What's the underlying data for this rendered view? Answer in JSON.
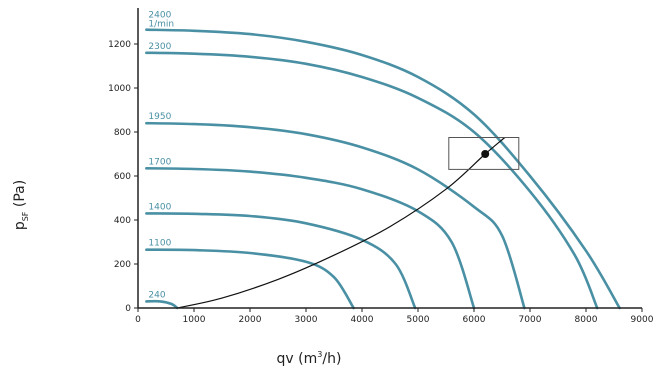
{
  "chart_data": {
    "type": "line",
    "xlabel": {
      "main": "qv (m",
      "sup": "3",
      "tail": "/h)"
    },
    "ylabel": {
      "main": "p",
      "sub": "SF",
      "tail": " (Pa)"
    },
    "xlim": [
      0,
      9000
    ],
    "ylim": [
      0,
      1400
    ],
    "x_ticks": [
      "0",
      "1000",
      "2000",
      "3000",
      "4000",
      "5000",
      "6000",
      "7000",
      "8000",
      "9000"
    ],
    "y_ticks": [
      "0",
      "200",
      "400",
      "600",
      "800",
      "1000",
      "1200"
    ],
    "grid": false,
    "colors": {
      "curve": "#4a90a4",
      "system": "#111111",
      "axis": "#222222"
    },
    "series": [
      {
        "name": "2400",
        "unit": "1/min",
        "values": [
          [
            150,
            1265
          ],
          [
            1000,
            1260
          ],
          [
            2000,
            1245
          ],
          [
            3000,
            1210
          ],
          [
            4000,
            1150
          ],
          [
            5000,
            1050
          ],
          [
            6000,
            880
          ],
          [
            7000,
            600
          ],
          [
            8000,
            260
          ],
          [
            8600,
            0
          ]
        ]
      },
      {
        "name": "2300",
        "values": [
          [
            150,
            1160
          ],
          [
            1000,
            1156
          ],
          [
            2000,
            1142
          ],
          [
            3000,
            1110
          ],
          [
            4000,
            1050
          ],
          [
            5000,
            955
          ],
          [
            6000,
            800
          ],
          [
            7000,
            530
          ],
          [
            7800,
            240
          ],
          [
            8200,
            0
          ]
        ]
      },
      {
        "name": "1950",
        "values": [
          [
            150,
            840
          ],
          [
            1000,
            836
          ],
          [
            2000,
            822
          ],
          [
            3000,
            790
          ],
          [
            4000,
            730
          ],
          [
            5000,
            630
          ],
          [
            6000,
            460
          ],
          [
            6500,
            330
          ],
          [
            6900,
            0
          ]
        ]
      },
      {
        "name": "1700",
        "values": [
          [
            150,
            635
          ],
          [
            1000,
            632
          ],
          [
            2000,
            620
          ],
          [
            3000,
            592
          ],
          [
            4000,
            540
          ],
          [
            5000,
            440
          ],
          [
            5600,
            300
          ],
          [
            6000,
            0
          ]
        ]
      },
      {
        "name": "1400",
        "values": [
          [
            150,
            430
          ],
          [
            1000,
            428
          ],
          [
            2000,
            418
          ],
          [
            3000,
            385
          ],
          [
            4000,
            310
          ],
          [
            4600,
            200
          ],
          [
            4950,
            0
          ]
        ]
      },
      {
        "name": "1100",
        "values": [
          [
            150,
            265
          ],
          [
            1000,
            263
          ],
          [
            2000,
            250
          ],
          [
            3000,
            210
          ],
          [
            3500,
            140
          ],
          [
            3850,
            0
          ]
        ]
      },
      {
        "name": "240",
        "values": [
          [
            150,
            30
          ],
          [
            400,
            30
          ],
          [
            600,
            18
          ],
          [
            700,
            0
          ]
        ]
      }
    ],
    "system_curve": [
      [
        700,
        0
      ],
      [
        1500,
        45
      ],
      [
        2500,
        130
      ],
      [
        3500,
        240
      ],
      [
        4500,
        370
      ],
      [
        5500,
        540
      ],
      [
        6200,
        700
      ],
      [
        6550,
        775
      ]
    ],
    "operating_point": [
      6200,
      700
    ],
    "operating_box": {
      "x": [
        5550,
        6800
      ],
      "y": [
        630,
        775
      ]
    }
  }
}
